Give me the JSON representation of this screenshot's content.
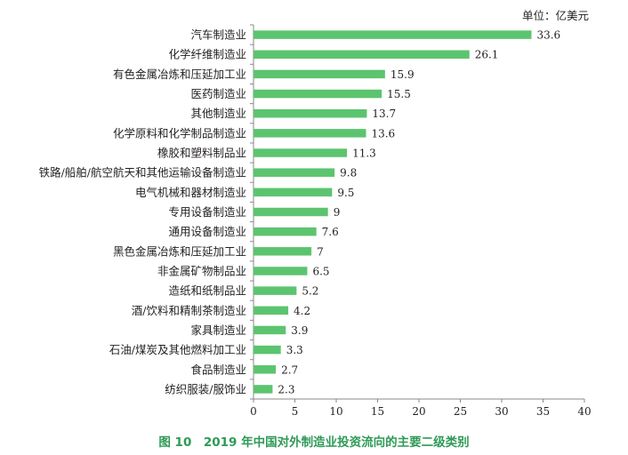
{
  "caption": "图 10　2019 年中国对外制造业投资流向的主要二级类别",
  "colors": {
    "bar": "#5cc46f",
    "axis": "#8a8a8a",
    "caption": "#2e9a56"
  },
  "chart_data": {
    "type": "bar",
    "orientation": "horizontal",
    "unit_label": "单位：亿美元",
    "categories": [
      "汽车制造业",
      "化学纤维制造业",
      "有色金属冶炼和压延加工业",
      "医药制造业",
      "其他制造业",
      "化学原料和化学制品制造业",
      "橡胶和塑料制品业",
      "铁路/船舶/航空航天和其他运输设备制造业",
      "电气机械和器材制造业",
      "专用设备制造业",
      "通用设备制造业",
      "黑色金属冶炼和压延加工业",
      "非金属矿物制品业",
      "造纸和纸制品业",
      "酒/饮料和精制茶制造业",
      "家具制造业",
      "石油/煤炭及其他燃料加工业",
      "食品制造业",
      "纺织服装/服饰业"
    ],
    "values": [
      33.6,
      26.1,
      15.9,
      15.5,
      13.7,
      13.6,
      11.3,
      9.8,
      9.5,
      9,
      7.6,
      7,
      6.5,
      5.2,
      4.2,
      3.9,
      3.3,
      2.7,
      2.3
    ],
    "value_labels": [
      "33.6",
      "26.1",
      "15.9",
      "15.5",
      "13.7",
      "13.6",
      "11.3",
      "9.8",
      "9.5",
      "9",
      "7.6",
      "7",
      "6.5",
      "5.2",
      "4.2",
      "3.9",
      "3.3",
      "2.7",
      "2.3"
    ],
    "xlim": [
      0,
      40
    ],
    "xticks": [
      0,
      5,
      10,
      15,
      20,
      25,
      30,
      35,
      40
    ],
    "grid": false,
    "legend": "none"
  }
}
